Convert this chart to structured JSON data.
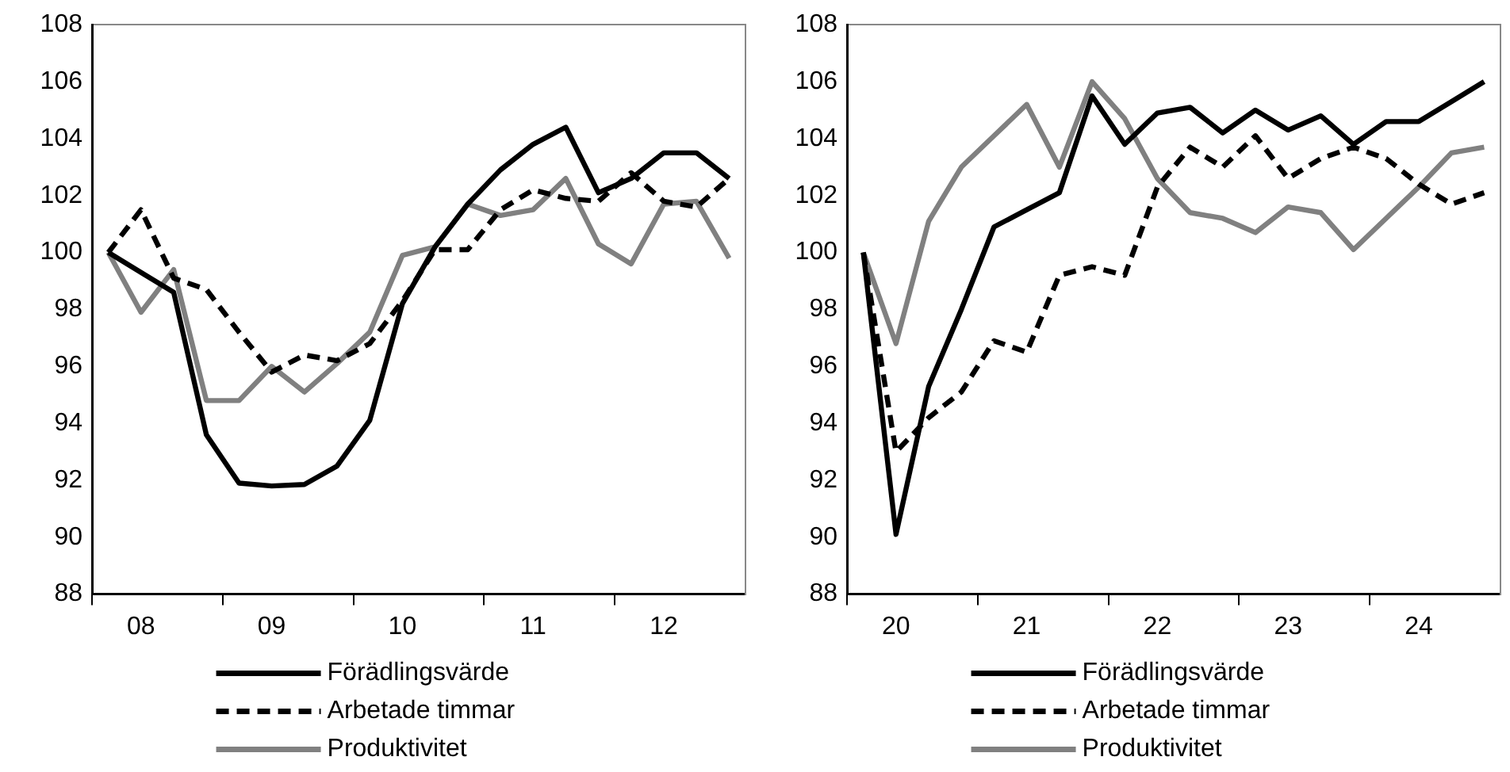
{
  "chart_data": [
    {
      "type": "line",
      "categories": [
        null,
        "08",
        null,
        null,
        null,
        "09",
        null,
        null,
        null,
        "10",
        null,
        null,
        null,
        "11",
        null,
        null,
        null,
        "12",
        null,
        null
      ],
      "ylim": [
        88,
        108
      ],
      "yticks": [
        88,
        90,
        92,
        94,
        96,
        98,
        100,
        102,
        104,
        106,
        108
      ],
      "grid": false,
      "legend": "bottom",
      "marker": "none",
      "series": [
        {
          "name": "Förädlingsvärde",
          "color": "#000000",
          "line_style": "solid",
          "values": [
            100,
            99.3,
            98.6,
            93.6,
            91.9,
            91.8,
            91.85,
            92.5,
            94.1,
            98.2,
            100.2,
            101.7,
            102.9,
            103.8,
            104.4,
            102.1,
            102.6,
            103.5,
            103.5,
            102.6
          ]
        },
        {
          "name": "Arbetade timmar",
          "color": "#000000",
          "line_style": "dashed",
          "values": [
            100,
            101.5,
            99.1,
            98.7,
            97.2,
            95.8,
            96.4,
            96.2,
            96.8,
            98.3,
            100.1,
            100.1,
            101.5,
            102.2,
            101.9,
            101.8,
            102.8,
            101.8,
            101.6,
            102.6
          ]
        },
        {
          "name": "Produktivitet",
          "color": "#808080",
          "line_style": "solid",
          "values": [
            100,
            97.9,
            99.4,
            94.8,
            94.8,
            96.0,
            95.1,
            96.1,
            97.2,
            99.9,
            100.2,
            101.7,
            101.3,
            101.5,
            102.6,
            100.3,
            99.6,
            101.7,
            101.8,
            99.8
          ]
        }
      ]
    },
    {
      "type": "line",
      "categories": [
        null,
        "20",
        null,
        null,
        null,
        "21",
        null,
        null,
        null,
        "22",
        null,
        null,
        null,
        "23",
        null,
        null,
        null,
        "24",
        null,
        null
      ],
      "ylim": [
        88,
        108
      ],
      "yticks": [
        88,
        90,
        92,
        94,
        96,
        98,
        100,
        102,
        104,
        106,
        108
      ],
      "grid": false,
      "legend": "bottom",
      "marker": "none",
      "series": [
        {
          "name": "Förädlingsvärde",
          "color": "#000000",
          "line_style": "solid",
          "values": [
            100,
            90.1,
            95.3,
            98.0,
            100.9,
            101.5,
            102.1,
            105.5,
            103.8,
            104.9,
            105.1,
            104.2,
            105.0,
            104.3,
            104.8,
            103.8,
            104.6,
            104.6,
            105.3,
            106.0
          ]
        },
        {
          "name": "Arbetade timmar",
          "color": "#000000",
          "line_style": "dashed",
          "values": [
            100,
            93.0,
            94.2,
            95.1,
            96.9,
            96.5,
            99.2,
            99.5,
            99.2,
            102.3,
            103.7,
            103.0,
            104.1,
            102.6,
            103.3,
            103.7,
            103.3,
            102.4,
            101.7,
            102.1
          ]
        },
        {
          "name": "Produktivitet",
          "color": "#808080",
          "line_style": "solid",
          "values": [
            100,
            96.8,
            101.1,
            103.0,
            104.1,
            105.2,
            103.0,
            106.0,
            104.7,
            102.6,
            101.4,
            101.2,
            100.7,
            101.6,
            101.4,
            100.1,
            101.2,
            102.3,
            103.5,
            103.7
          ]
        }
      ]
    }
  ]
}
